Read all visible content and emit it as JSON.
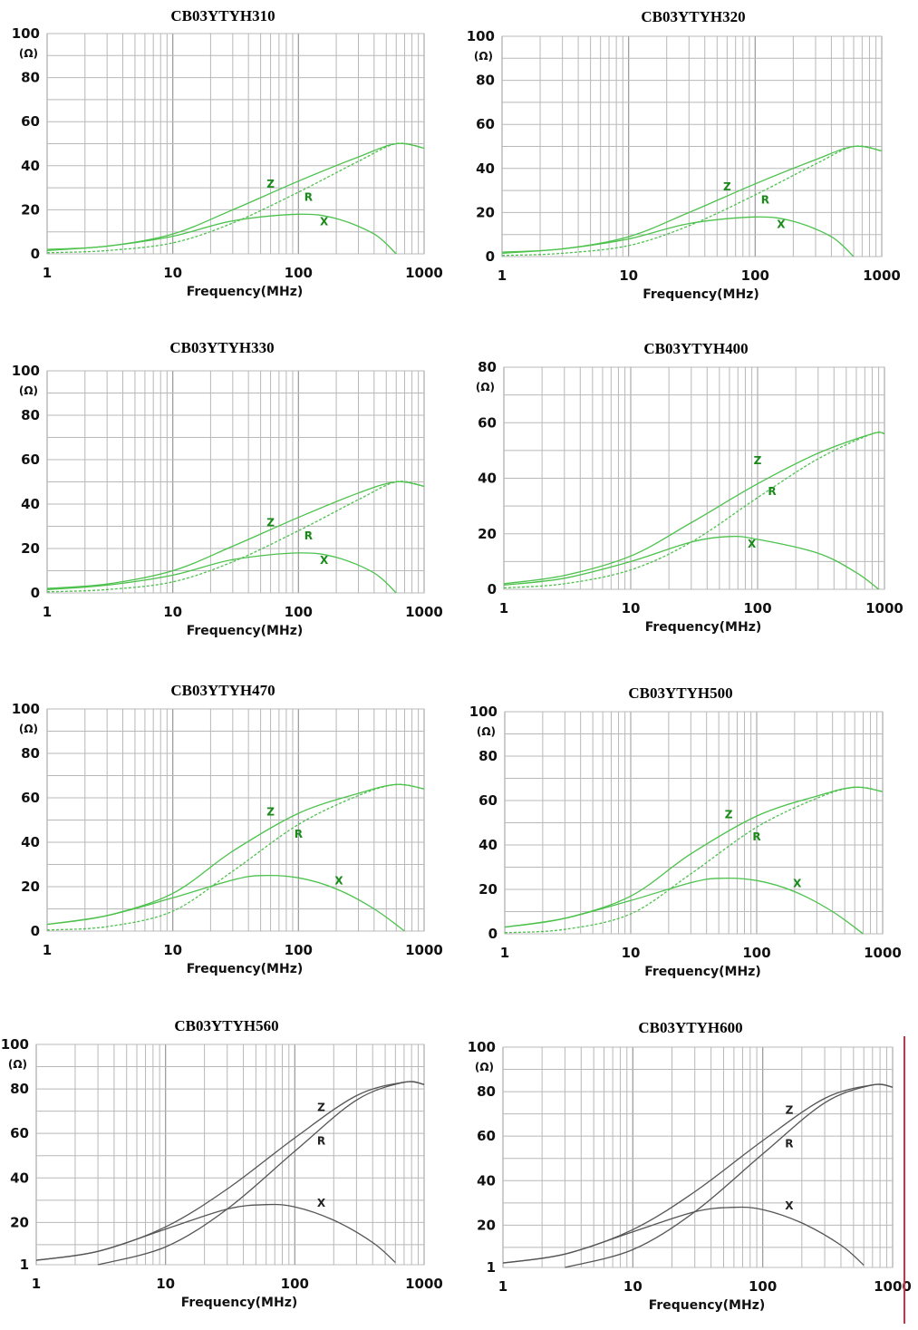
{
  "chart_data": [
    {
      "type": "line",
      "title": "CB03YTYH310",
      "xlabel": "Frequency(MHz)",
      "unit": "(Ω)",
      "xscale": "log",
      "xlim": [
        1,
        1000
      ],
      "ylim": [
        0,
        100
      ],
      "xticks": [
        "1",
        "10",
        "100",
        "1000"
      ],
      "yticks": [
        "0",
        "20",
        "40",
        "60",
        "80",
        "100"
      ],
      "line_color": "#4cc24c",
      "label_color": "#1a8a1a",
      "series": [
        {
          "name": "Z",
          "label_at": [
            60,
            30
          ],
          "x": [
            1,
            3,
            10,
            30,
            100,
            300,
            600,
            1000
          ],
          "y": [
            2,
            3.5,
            9,
            20,
            33,
            44,
            50,
            48
          ]
        },
        {
          "name": "R",
          "label_at": [
            120,
            24
          ],
          "x": [
            1,
            3,
            10,
            30,
            100,
            300,
            600,
            1000
          ],
          "y": [
            0.5,
            1.5,
            5,
            14,
            28,
            42,
            50,
            48
          ]
        },
        {
          "name": "X",
          "label_at": [
            160,
            13
          ],
          "x": [
            1,
            3,
            10,
            30,
            100,
            200,
            400,
            600
          ],
          "y": [
            1.5,
            3.5,
            8,
            15,
            18,
            16,
            9,
            0
          ]
        }
      ]
    },
    {
      "type": "line",
      "title": "CB03YTYH320",
      "xlabel": "Frequency(MHz)",
      "unit": "(Ω)",
      "xscale": "log",
      "xlim": [
        1,
        1000
      ],
      "ylim": [
        0,
        100
      ],
      "xticks": [
        "1",
        "10",
        "100",
        "1000"
      ],
      "yticks": [
        "0",
        "20",
        "40",
        "60",
        "80",
        "100"
      ],
      "line_color": "#4cc24c",
      "label_color": "#1a8a1a",
      "series": [
        {
          "name": "Z",
          "label_at": [
            60,
            30
          ],
          "x": [
            1,
            3,
            10,
            30,
            100,
            300,
            600,
            1000
          ],
          "y": [
            2,
            3.5,
            9,
            20,
            33,
            44,
            50,
            48
          ]
        },
        {
          "name": "R",
          "label_at": [
            120,
            24
          ],
          "x": [
            1,
            3,
            10,
            30,
            100,
            300,
            600,
            1000
          ],
          "y": [
            0.5,
            1.5,
            5,
            14,
            28,
            42,
            50,
            48
          ]
        },
        {
          "name": "X",
          "label_at": [
            160,
            13
          ],
          "x": [
            1,
            3,
            10,
            30,
            100,
            200,
            400,
            600
          ],
          "y": [
            1.5,
            3.5,
            8,
            15,
            18,
            16,
            9,
            0
          ]
        }
      ]
    },
    {
      "type": "line",
      "title": "CB03YTYH330",
      "xlabel": "Frequency(MHz)",
      "unit": "(Ω)",
      "xscale": "log",
      "xlim": [
        1,
        1000
      ],
      "ylim": [
        0,
        100
      ],
      "xticks": [
        "1",
        "10",
        "100",
        "1000"
      ],
      "yticks": [
        "0",
        "20",
        "40",
        "60",
        "80",
        "100"
      ],
      "line_color": "#4cc24c",
      "label_color": "#1a8a1a",
      "series": [
        {
          "name": "Z",
          "label_at": [
            60,
            30
          ],
          "x": [
            1,
            3,
            10,
            30,
            100,
            300,
            600,
            1000
          ],
          "y": [
            2,
            4,
            10,
            21,
            34,
            45,
            50,
            48
          ]
        },
        {
          "name": "R",
          "label_at": [
            120,
            24
          ],
          "x": [
            1,
            3,
            10,
            30,
            100,
            300,
            600,
            1000
          ],
          "y": [
            0.5,
            1.5,
            5,
            14,
            28,
            42,
            50,
            48
          ]
        },
        {
          "name": "X",
          "label_at": [
            160,
            13
          ],
          "x": [
            1,
            3,
            10,
            30,
            100,
            200,
            400,
            600
          ],
          "y": [
            1.5,
            3.5,
            8,
            15,
            18,
            16,
            9,
            0
          ]
        }
      ]
    },
    {
      "type": "line",
      "title": "CB03YTYH400",
      "xlabel": "Frequency(MHz)",
      "unit": "(Ω)",
      "xscale": "log",
      "xlim": [
        1,
        1000
      ],
      "ylim": [
        0,
        80
      ],
      "xticks": [
        "1",
        "10",
        "100",
        "1000"
      ],
      "yticks": [
        "0",
        "20",
        "40",
        "60",
        "80"
      ],
      "line_color": "#4cc24c",
      "label_color": "#1a8a1a",
      "series": [
        {
          "name": "Z",
          "label_at": [
            100,
            45
          ],
          "x": [
            1,
            3,
            10,
            30,
            100,
            300,
            800,
            1000
          ],
          "y": [
            2,
            5,
            12,
            24,
            38,
            49,
            56,
            56
          ]
        },
        {
          "name": "R",
          "label_at": [
            130,
            34
          ],
          "x": [
            1,
            3,
            10,
            30,
            100,
            300,
            800,
            1000
          ],
          "y": [
            0.5,
            2,
            7,
            17,
            33,
            47,
            56,
            56
          ]
        },
        {
          "name": "X",
          "label_at": [
            90,
            15
          ],
          "x": [
            1,
            3,
            10,
            30,
            60,
            100,
            300,
            600,
            900
          ],
          "y": [
            1.5,
            4,
            10,
            17,
            19,
            18,
            13,
            6,
            0
          ]
        }
      ]
    },
    {
      "type": "line",
      "title": "CB03YTYH470",
      "xlabel": "Frequency(MHz)",
      "unit": "(Ω)",
      "xscale": "log",
      "xlim": [
        1,
        1000
      ],
      "ylim": [
        0,
        100
      ],
      "xticks": [
        "1",
        "10",
        "100",
        "1000"
      ],
      "yticks": [
        "0",
        "20",
        "40",
        "60",
        "80",
        "100"
      ],
      "line_color": "#4cc24c",
      "label_color": "#1a8a1a",
      "series": [
        {
          "name": "Z",
          "label_at": [
            60,
            52
          ],
          "x": [
            1,
            3,
            10,
            30,
            100,
            300,
            600,
            1000
          ],
          "y": [
            3,
            7,
            17,
            36,
            53,
            62,
            66,
            64
          ]
        },
        {
          "name": "R",
          "label_at": [
            100,
            42
          ],
          "x": [
            1,
            3,
            10,
            30,
            100,
            300,
            600,
            1000
          ],
          "y": [
            0.5,
            2,
            9,
            27,
            48,
            61,
            66,
            64
          ]
        },
        {
          "name": "X",
          "label_at": [
            210,
            21
          ],
          "x": [
            1,
            3,
            10,
            30,
            50,
            100,
            200,
            400,
            700
          ],
          "y": [
            3,
            7,
            15,
            23,
            25,
            24,
            19,
            10,
            0
          ]
        }
      ]
    },
    {
      "type": "line",
      "title": "CB03YTYH500",
      "xlabel": "Frequency(MHz)",
      "unit": "(Ω)",
      "xscale": "log",
      "xlim": [
        1,
        1000
      ],
      "ylim": [
        0,
        100
      ],
      "xticks": [
        "1",
        "10",
        "100",
        "1000"
      ],
      "yticks": [
        "0",
        "20",
        "40",
        "60",
        "80",
        "100"
      ],
      "line_color": "#4cc24c",
      "label_color": "#1a8a1a",
      "series": [
        {
          "name": "Z",
          "label_at": [
            60,
            52
          ],
          "x": [
            1,
            3,
            10,
            30,
            100,
            300,
            600,
            1000
          ],
          "y": [
            3,
            7,
            17,
            36,
            53,
            62,
            66,
            64
          ]
        },
        {
          "name": "R",
          "label_at": [
            100,
            42
          ],
          "x": [
            1,
            3,
            10,
            30,
            100,
            300,
            600,
            1000
          ],
          "y": [
            0.5,
            2,
            9,
            27,
            48,
            61,
            66,
            64
          ]
        },
        {
          "name": "X",
          "label_at": [
            210,
            21
          ],
          "x": [
            1,
            3,
            10,
            30,
            50,
            100,
            200,
            400,
            700
          ],
          "y": [
            3,
            7,
            15,
            23,
            25,
            24,
            19,
            10,
            0
          ]
        }
      ]
    },
    {
      "type": "line",
      "title": "CB03YTYH560",
      "xlabel": "Frequency(MHz)",
      "unit": "(Ω)",
      "xscale": "log",
      "xlim": [
        1,
        1000
      ],
      "ylim": [
        1,
        100
      ],
      "xticks": [
        "1",
        "10",
        "100",
        "1000"
      ],
      "yticks": [
        "1",
        "20",
        "40",
        "60",
        "80",
        "100"
      ],
      "line_color": "#555555",
      "label_color": "#222222",
      "series": [
        {
          "name": "Z",
          "label_at": [
            160,
            70
          ],
          "x": [
            1,
            3,
            10,
            30,
            100,
            300,
            700,
            1000
          ],
          "y": [
            3,
            7,
            18,
            35,
            58,
            77,
            83,
            82
          ]
        },
        {
          "name": "R",
          "label_at": [
            160,
            55
          ],
          "x": [
            3,
            10,
            30,
            100,
            300,
            700,
            1000
          ],
          "y": [
            1,
            9,
            26,
            52,
            75,
            83,
            82
          ]
        },
        {
          "name": "X",
          "label_at": [
            160,
            27
          ],
          "x": [
            1,
            3,
            10,
            30,
            60,
            100,
            200,
            400,
            600
          ],
          "y": [
            3,
            7,
            17,
            26,
            28,
            27,
            21,
            11,
            2
          ]
        }
      ]
    },
    {
      "type": "line",
      "title": "CB03YTYH600",
      "xlabel": "Frequency(MHz)",
      "unit": "(Ω)",
      "xscale": "log",
      "xlim": [
        1,
        1000
      ],
      "ylim": [
        1,
        100
      ],
      "xticks": [
        "1",
        "10",
        "100",
        "1000"
      ],
      "yticks": [
        "1",
        "20",
        "40",
        "60",
        "80",
        "100"
      ],
      "line_color": "#555555",
      "label_color": "#222222",
      "series": [
        {
          "name": "Z",
          "label_at": [
            160,
            70
          ],
          "x": [
            1,
            3,
            10,
            30,
            100,
            300,
            700,
            1000
          ],
          "y": [
            3,
            7,
            18,
            35,
            58,
            77,
            83,
            82
          ]
        },
        {
          "name": "R",
          "label_at": [
            160,
            55
          ],
          "x": [
            3,
            10,
            30,
            100,
            300,
            700,
            1000
          ],
          "y": [
            1,
            9,
            26,
            52,
            75,
            83,
            82
          ]
        },
        {
          "name": "X",
          "label_at": [
            160,
            27
          ],
          "x": [
            1,
            3,
            10,
            30,
            60,
            100,
            200,
            400,
            600
          ],
          "y": [
            3,
            7,
            17,
            26,
            28,
            27,
            21,
            11,
            2
          ]
        }
      ]
    }
  ]
}
